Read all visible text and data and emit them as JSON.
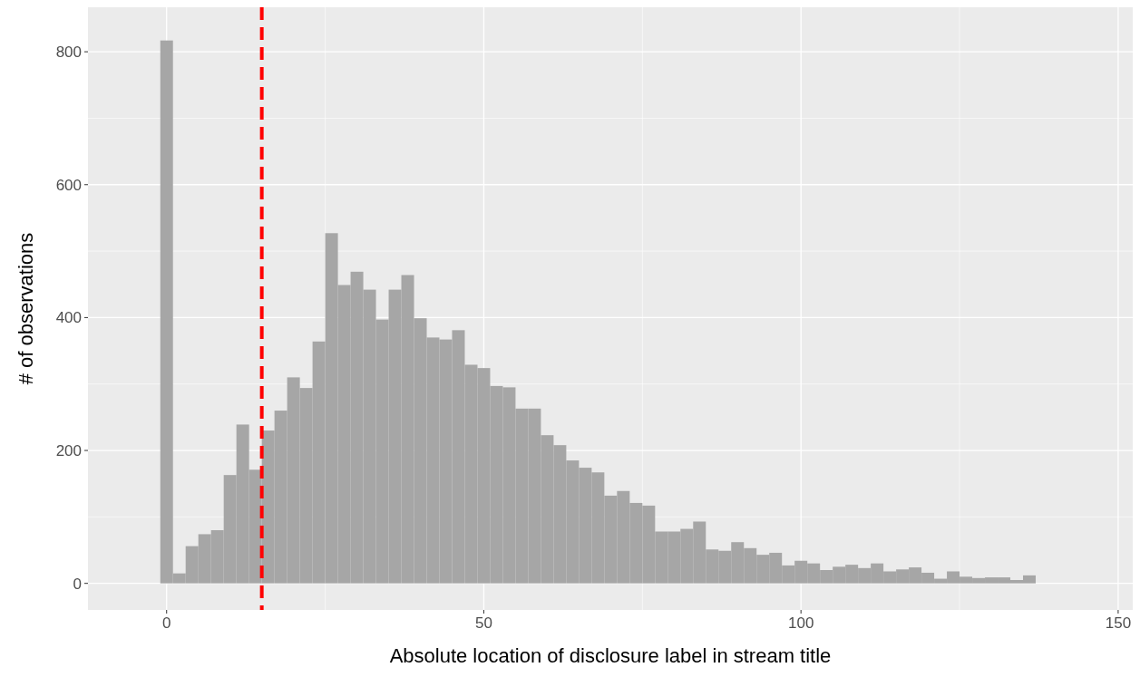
{
  "chart_data": {
    "type": "histogram",
    "xlabel": "Absolute location of disclosure label in stream title",
    "ylabel": "# of observations",
    "bins": [
      -1,
      1,
      3,
      5,
      7,
      9,
      11,
      13,
      15,
      17,
      19,
      21,
      23,
      25,
      27,
      29,
      31,
      33,
      35,
      37,
      39,
      41,
      43,
      45,
      47,
      49,
      51,
      53,
      55,
      57,
      59,
      61,
      63,
      65,
      67,
      69,
      71,
      73,
      75,
      77,
      79,
      81,
      83,
      85,
      87,
      89,
      91,
      93,
      95,
      97,
      99,
      101,
      103,
      105,
      107,
      109,
      111,
      113,
      115,
      117,
      119,
      121,
      123,
      125,
      127,
      129,
      131,
      133,
      135,
      137
    ],
    "values": [
      817,
      15,
      56,
      74,
      80,
      163,
      239,
      171,
      230,
      260,
      310,
      294,
      364,
      527,
      449,
      469,
      442,
      397,
      442,
      464,
      399,
      370,
      367,
      381,
      329,
      324,
      297,
      295,
      263,
      263,
      223,
      208,
      185,
      174,
      167,
      132,
      139,
      121,
      117,
      78,
      78,
      82,
      93,
      51,
      49,
      62,
      53,
      43,
      46,
      27,
      34,
      30,
      20,
      25,
      28,
      23,
      30,
      18,
      21,
      24,
      16,
      7,
      18,
      10,
      8,
      9,
      9,
      5,
      12
    ],
    "color": "#a6a6a6",
    "xlim": [
      -12.4,
      152.3
    ],
    "xticks": [
      0,
      50,
      100,
      150
    ],
    "ylim": [
      -40,
      867
    ],
    "yticks": [
      0,
      200,
      400,
      600,
      800
    ],
    "grid": true,
    "ref_lines": [
      {
        "axis": "x",
        "value": 15,
        "color": "#ff0000",
        "line_style": "dashed"
      }
    ]
  }
}
